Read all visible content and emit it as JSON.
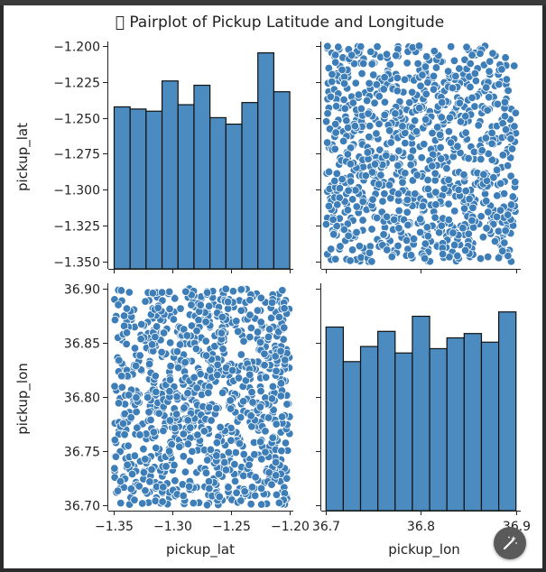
{
  "title": "\u0000 Pairplot of Pickup Latitude and Longitude",
  "colors": {
    "bar": "#4c8bc0",
    "bar_edge": "#111111",
    "point": "#3d7eb8",
    "point_edge": "#ffffff"
  },
  "edit_icon": "magic-wand-icon",
  "chart_data": [
    {
      "panel": "top-left",
      "type": "histogram",
      "ylabel": "pickup_lat",
      "x_range": [
        -1.35,
        -1.2
      ],
      "ylim": [
        -1.355,
        -1.197
      ],
      "yticks": [
        "−1.200",
        "−1.225",
        "−1.250",
        "−1.275",
        "−1.300",
        "−1.325",
        "−1.350"
      ],
      "ytick_values": [
        -1.2,
        -1.225,
        -1.25,
        -1.275,
        -1.3,
        -1.325,
        -1.35
      ],
      "bin_count": 11,
      "relative_heights": [
        0.75,
        0.74,
        0.73,
        0.87,
        0.76,
        0.85,
        0.7,
        0.67,
        0.77,
        1.0,
        0.82
      ]
    },
    {
      "panel": "top-right",
      "type": "scatter",
      "x": "pickup_lon",
      "y": "pickup_lat",
      "xlim": [
        36.695,
        36.905
      ],
      "ylim": [
        -1.355,
        -1.197
      ],
      "n_points": 1000,
      "point_color": "#3d7eb8"
    },
    {
      "panel": "bottom-left",
      "type": "scatter",
      "x": "pickup_lat",
      "y": "pickup_lon",
      "xlabel": "pickup_lat",
      "ylabel": "pickup_lon",
      "xlim": [
        -1.355,
        -1.197
      ],
      "ylim": [
        36.695,
        36.905
      ],
      "xticks": [
        "−1.35",
        "−1.30",
        "−1.25",
        "−1.20"
      ],
      "xtick_values": [
        -1.35,
        -1.3,
        -1.25,
        -1.2
      ],
      "yticks": [
        "36.90",
        "36.85",
        "36.80",
        "36.75",
        "36.70"
      ],
      "ytick_values": [
        36.9,
        36.85,
        36.8,
        36.75,
        36.7
      ],
      "n_points": 1000,
      "point_color": "#3d7eb8"
    },
    {
      "panel": "bottom-right",
      "type": "histogram",
      "xlabel": "pickup_lon",
      "x_range": [
        36.7,
        36.9
      ],
      "xlim": [
        36.695,
        36.905
      ],
      "xticks": [
        "36.7",
        "36.8",
        "36.9"
      ],
      "xtick_values": [
        36.7,
        36.8,
        36.9
      ],
      "bin_count": 11,
      "relative_heights": [
        0.85,
        0.69,
        0.76,
        0.83,
        0.73,
        0.9,
        0.75,
        0.8,
        0.82,
        0.78,
        0.92
      ]
    }
  ]
}
